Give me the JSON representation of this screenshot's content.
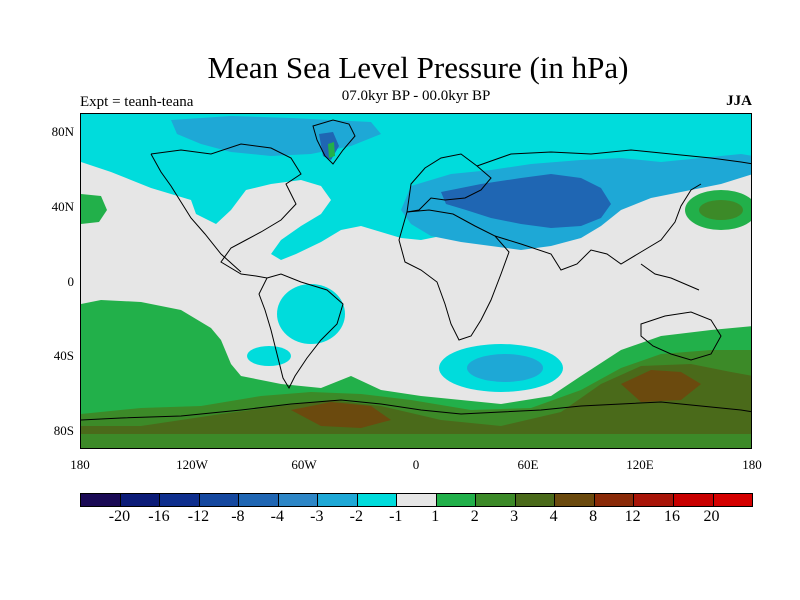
{
  "title": "Mean Sea Level Pressure (in hPa)",
  "subtitle": "07.0kyr BP - 00.0kyr BP",
  "experiment": "Expt = teanh-teana",
  "season": "JJA",
  "axes": {
    "y_labels": [
      "80N",
      "40N",
      "0",
      "40S",
      "80S"
    ],
    "x_labels": [
      "180",
      "120W",
      "60W",
      "0",
      "60E",
      "120E",
      "180"
    ]
  },
  "colorbar": {
    "labels": [
      "-20",
      "-16",
      "-12",
      "-8",
      "-4",
      "-3",
      "-2",
      "-1",
      "1",
      "2",
      "3",
      "4",
      "8",
      "12",
      "16",
      "20"
    ],
    "colors": [
      "#1a0a55",
      "#0c1c78",
      "#0f2f8e",
      "#15489f",
      "#1f66b3",
      "#2d86c6",
      "#1ea8d6",
      "#00dcdc",
      "#e6e6e6",
      "#22b04a",
      "#3c8a28",
      "#4a6a1a",
      "#6b4a0e",
      "#8a2a08",
      "#a81408",
      "#c80000",
      "#d40000"
    ]
  },
  "map_colors": {
    "ocean_neutral": "#e6e6e6",
    "cyan": "#00dcdc",
    "light_blue": "#1ea8d6",
    "mid_blue": "#1f66b3",
    "green": "#22b04a",
    "dark_green": "#3c8a28",
    "olive": "#4a6a1a",
    "brown": "#6b4a0e",
    "coastline": "#000000"
  }
}
